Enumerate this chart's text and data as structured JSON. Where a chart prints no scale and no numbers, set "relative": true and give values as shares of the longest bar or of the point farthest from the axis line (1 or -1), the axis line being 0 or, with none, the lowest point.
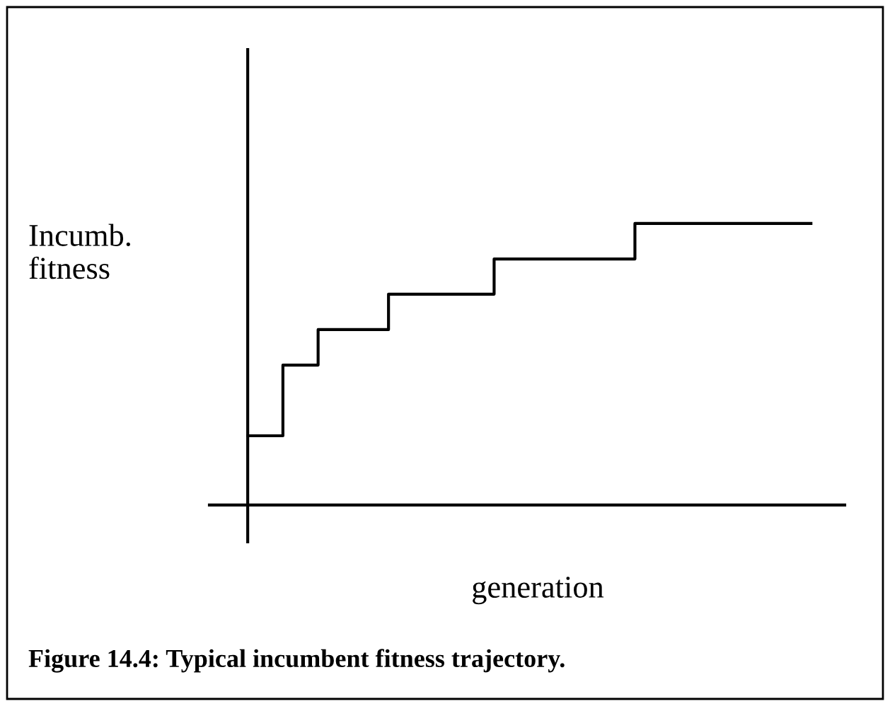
{
  "chart_data": {
    "type": "step",
    "relative": true,
    "xlabel": "generation",
    "ylabel": "Incumb.\nfitness",
    "annotations": [
      "Figure 14.4: Typical incumbent fitness trajectory."
    ],
    "categories": [
      null,
      null,
      null,
      null,
      null,
      null,
      null,
      null,
      null,
      null,
      null,
      null,
      null,
      null,
      null,
      null,
      null
    ],
    "series": [
      {
        "color": "#000000",
        "values": [
          0.246,
          0.497,
          0.623,
          0.623,
          0.749,
          0.749,
          0.749,
          0.874,
          0.874,
          0.874,
          0.874,
          1.0,
          1.0,
          1.0,
          1.0,
          1.0,
          1.0
        ]
      }
    ],
    "tick_labels": false,
    "marker": "none",
    "line_style": "solid"
  }
}
